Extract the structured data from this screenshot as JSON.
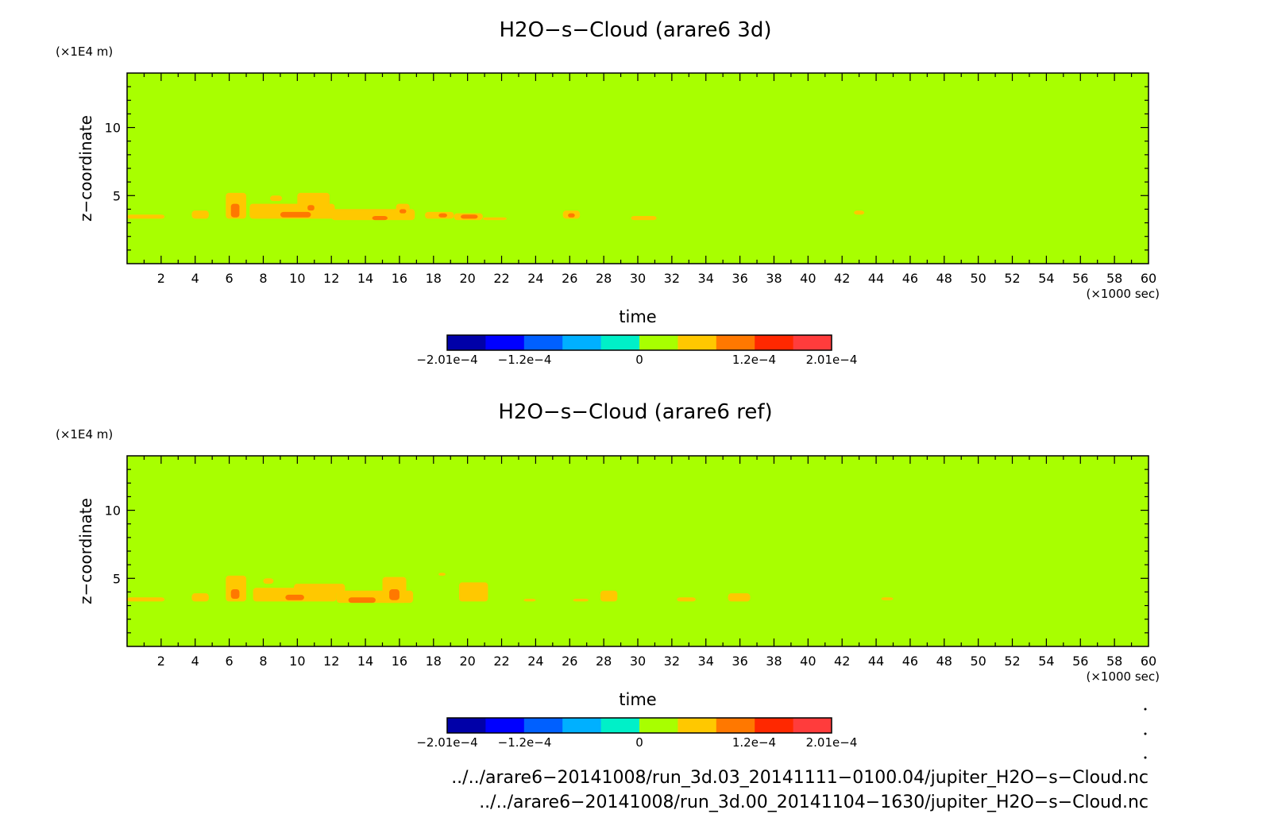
{
  "chart_data": [
    {
      "type": "heatmap",
      "title": "H2O−s−Cloud (arare6 3d)",
      "xlabel": "time",
      "ylabel": "z−coordinate",
      "x_unit": "(×1000 sec)",
      "y_unit": "(×1E4 m)",
      "xlim": [
        0,
        60
      ],
      "ylim": [
        0,
        14
      ],
      "x_ticks": [
        2,
        4,
        6,
        8,
        10,
        12,
        14,
        16,
        18,
        20,
        22,
        24,
        26,
        28,
        30,
        32,
        34,
        36,
        38,
        40,
        42,
        44,
        46,
        48,
        50,
        52,
        54,
        56,
        58,
        60
      ],
      "y_ticks": [
        5,
        10
      ],
      "background_level": 0,
      "features": [
        {
          "x": [
            0,
            2.2
          ],
          "y": [
            3.3,
            3.6
          ],
          "level": 1
        },
        {
          "x": [
            3.8,
            4.8
          ],
          "y": [
            3.3,
            3.9
          ],
          "level": 1
        },
        {
          "x": [
            5.8,
            7.0
          ],
          "y": [
            3.3,
            5.2
          ],
          "level": 1
        },
        {
          "x": [
            6.1,
            6.6
          ],
          "y": [
            3.4,
            4.4
          ],
          "level": 2
        },
        {
          "x": [
            7.2,
            12.2
          ],
          "y": [
            3.3,
            4.4
          ],
          "level": 1
        },
        {
          "x": [
            8.4,
            9.1
          ],
          "y": [
            4.6,
            5.0
          ],
          "level": 1
        },
        {
          "x": [
            10.0,
            11.9
          ],
          "y": [
            3.7,
            5.2
          ],
          "level": 1
        },
        {
          "x": [
            9.0,
            10.8
          ],
          "y": [
            3.4,
            3.8
          ],
          "level": 2
        },
        {
          "x": [
            10.6,
            11.0
          ],
          "y": [
            3.9,
            4.3
          ],
          "level": 2
        },
        {
          "x": [
            12.0,
            16.9
          ],
          "y": [
            3.2,
            4.0
          ],
          "level": 1
        },
        {
          "x": [
            14.4,
            15.3
          ],
          "y": [
            3.2,
            3.5
          ],
          "level": 2
        },
        {
          "x": [
            15.8,
            16.6
          ],
          "y": [
            3.6,
            4.4
          ],
          "level": 1
        },
        {
          "x": [
            16.0,
            16.4
          ],
          "y": [
            3.7,
            4.0
          ],
          "level": 2
        },
        {
          "x": [
            17.5,
            19.2
          ],
          "y": [
            3.3,
            3.8
          ],
          "level": 1
        },
        {
          "x": [
            18.3,
            18.8
          ],
          "y": [
            3.4,
            3.7
          ],
          "level": 2
        },
        {
          "x": [
            19.2,
            20.9
          ],
          "y": [
            3.2,
            3.7
          ],
          "level": 1
        },
        {
          "x": [
            19.6,
            20.6
          ],
          "y": [
            3.3,
            3.6
          ],
          "level": 2
        },
        {
          "x": [
            20.9,
            22.3
          ],
          "y": [
            3.2,
            3.4
          ],
          "level": 1
        },
        {
          "x": [
            25.6,
            26.6
          ],
          "y": [
            3.3,
            3.9
          ],
          "level": 1
        },
        {
          "x": [
            25.9,
            26.3
          ],
          "y": [
            3.4,
            3.7
          ],
          "level": 2
        },
        {
          "x": [
            29.6,
            31.1
          ],
          "y": [
            3.2,
            3.5
          ],
          "level": 1
        },
        {
          "x": [
            42.7,
            43.3
          ],
          "y": [
            3.6,
            3.9
          ],
          "level": 1
        }
      ]
    },
    {
      "type": "heatmap",
      "title": "H2O−s−Cloud (arare6 ref)",
      "xlabel": "time",
      "ylabel": "z−coordinate",
      "x_unit": "(×1000 sec)",
      "y_unit": "(×1E4 m)",
      "xlim": [
        0,
        60
      ],
      "ylim": [
        0,
        14
      ],
      "x_ticks": [
        2,
        4,
        6,
        8,
        10,
        12,
        14,
        16,
        18,
        20,
        22,
        24,
        26,
        28,
        30,
        32,
        34,
        36,
        38,
        40,
        42,
        44,
        46,
        48,
        50,
        52,
        54,
        56,
        58,
        60
      ],
      "y_ticks": [
        5,
        10
      ],
      "background_level": 0,
      "features": [
        {
          "x": [
            0,
            2.2
          ],
          "y": [
            3.3,
            3.6
          ],
          "level": 1
        },
        {
          "x": [
            3.8,
            4.8
          ],
          "y": [
            3.3,
            3.9
          ],
          "level": 1
        },
        {
          "x": [
            5.8,
            7.0
          ],
          "y": [
            3.3,
            5.2
          ],
          "level": 1
        },
        {
          "x": [
            6.1,
            6.6
          ],
          "y": [
            3.5,
            4.2
          ],
          "level": 2
        },
        {
          "x": [
            7.4,
            12.3
          ],
          "y": [
            3.3,
            4.3
          ],
          "level": 1
        },
        {
          "x": [
            8.0,
            8.6
          ],
          "y": [
            4.6,
            5.0
          ],
          "level": 1
        },
        {
          "x": [
            9.8,
            12.8
          ],
          "y": [
            3.9,
            4.6
          ],
          "level": 1
        },
        {
          "x": [
            9.3,
            10.4
          ],
          "y": [
            3.4,
            3.8
          ],
          "level": 2
        },
        {
          "x": [
            12.3,
            16.8
          ],
          "y": [
            3.2,
            4.1
          ],
          "level": 1
        },
        {
          "x": [
            13.0,
            14.6
          ],
          "y": [
            3.2,
            3.6
          ],
          "level": 2
        },
        {
          "x": [
            15.0,
            16.4
          ],
          "y": [
            3.2,
            5.1
          ],
          "level": 1
        },
        {
          "x": [
            15.4,
            16.0
          ],
          "y": [
            3.4,
            4.2
          ],
          "level": 2
        },
        {
          "x": [
            18.3,
            18.7
          ],
          "y": [
            5.2,
            5.4
          ],
          "level": 1
        },
        {
          "x": [
            19.5,
            21.2
          ],
          "y": [
            3.3,
            4.7
          ],
          "level": 1
        },
        {
          "x": [
            23.3,
            24.0
          ],
          "y": [
            3.3,
            3.5
          ],
          "level": 1
        },
        {
          "x": [
            26.2,
            27.1
          ],
          "y": [
            3.3,
            3.5
          ],
          "level": 1
        },
        {
          "x": [
            27.8,
            28.8
          ],
          "y": [
            3.3,
            4.1
          ],
          "level": 1
        },
        {
          "x": [
            32.3,
            33.4
          ],
          "y": [
            3.3,
            3.6
          ],
          "level": 1
        },
        {
          "x": [
            35.3,
            36.6
          ],
          "y": [
            3.3,
            3.9
          ],
          "level": 1
        },
        {
          "x": [
            44.3,
            45.0
          ],
          "y": [
            3.4,
            3.6
          ],
          "level": 1
        }
      ]
    }
  ],
  "colorbar": {
    "colors": [
      "#0000a8",
      "#0000ff",
      "#0060ff",
      "#00b0ff",
      "#00f0c8",
      "#a8ff00",
      "#ffc800",
      "#ff7800",
      "#ff2800",
      "#ff3c3c"
    ],
    "label_bottom_positions": [
      -0.000201,
      -0.00012,
      0,
      0.00012,
      0.000201
    ],
    "tick_labels": [
      "−2.01e−4",
      "−1.2e−4",
      "0",
      "1.2e−4",
      "2.01e−4"
    ]
  },
  "level_colors": [
    "#a8ff00",
    "#ffc800",
    "#ff7800",
    "#ff2800"
  ],
  "file_paths": [
    "../../arare6−20141008/run_3d.03_20141111−0100.04/jupiter_H2O−s−Cloud.nc",
    "../../arare6−20141008/run_3d.00_20141104−1630/jupiter_H2O−s−Cloud.nc"
  ]
}
